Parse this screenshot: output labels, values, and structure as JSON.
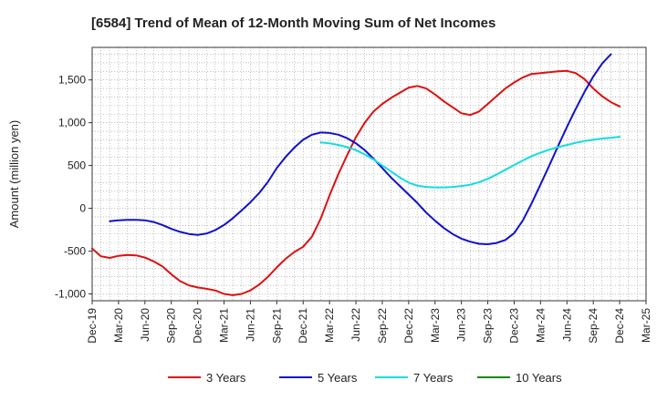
{
  "chart_data": {
    "type": "line",
    "title": "[6584]  Trend of Mean of 12-Month Moving Sum of Net Incomes",
    "xlabel": "",
    "ylabel": "Amount (million yen)",
    "x_start": "2019-12",
    "x_end": "2025-03",
    "ylim": [
      -1080,
      1880
    ],
    "yticks": [
      -1000,
      -500,
      0,
      500,
      1000,
      1500
    ],
    "ytick_labels": [
      "-1,000",
      "-500",
      "0",
      "500",
      "1,000",
      "1,500"
    ],
    "xtick_labels": [
      "Dec-19",
      "Mar-20",
      "Jun-20",
      "Sep-20",
      "Dec-20",
      "Mar-21",
      "Jun-21",
      "Sep-21",
      "Dec-21",
      "Mar-22",
      "Jun-22",
      "Sep-22",
      "Dec-22",
      "Mar-23",
      "Jun-23",
      "Sep-23",
      "Dec-23",
      "Mar-24",
      "Jun-24",
      "Sep-24",
      "Dec-24",
      "Mar-25"
    ],
    "grid": true,
    "legend_position": "bottom",
    "series": [
      {
        "name": "3 Years",
        "color": "#dd1111",
        "points": [
          [
            "2019-12",
            -470
          ],
          [
            "2020-01",
            -560
          ],
          [
            "2020-02",
            -580
          ],
          [
            "2020-03",
            -555
          ],
          [
            "2020-04",
            -545
          ],
          [
            "2020-05",
            -550
          ],
          [
            "2020-06",
            -575
          ],
          [
            "2020-07",
            -620
          ],
          [
            "2020-08",
            -680
          ],
          [
            "2020-09",
            -770
          ],
          [
            "2020-10",
            -850
          ],
          [
            "2020-11",
            -900
          ],
          [
            "2020-12",
            -925
          ],
          [
            "2021-01",
            -940
          ],
          [
            "2021-02",
            -960
          ],
          [
            "2021-03",
            -1000
          ],
          [
            "2021-04",
            -1015
          ],
          [
            "2021-05",
            -1000
          ],
          [
            "2021-06",
            -960
          ],
          [
            "2021-07",
            -890
          ],
          [
            "2021-08",
            -800
          ],
          [
            "2021-09",
            -690
          ],
          [
            "2021-10",
            -590
          ],
          [
            "2021-11",
            -510
          ],
          [
            "2021-12",
            -450
          ],
          [
            "2022-01",
            -330
          ],
          [
            "2022-02",
            -120
          ],
          [
            "2022-03",
            150
          ],
          [
            "2022-04",
            400
          ],
          [
            "2022-05",
            620
          ],
          [
            "2022-06",
            830
          ],
          [
            "2022-07",
            1000
          ],
          [
            "2022-08",
            1130
          ],
          [
            "2022-09",
            1220
          ],
          [
            "2022-10",
            1290
          ],
          [
            "2022-11",
            1350
          ],
          [
            "2022-12",
            1410
          ],
          [
            "2023-01",
            1430
          ],
          [
            "2023-02",
            1400
          ],
          [
            "2023-03",
            1330
          ],
          [
            "2023-04",
            1250
          ],
          [
            "2023-05",
            1180
          ],
          [
            "2023-06",
            1110
          ],
          [
            "2023-07",
            1090
          ],
          [
            "2023-08",
            1130
          ],
          [
            "2023-09",
            1220
          ],
          [
            "2023-10",
            1310
          ],
          [
            "2023-11",
            1400
          ],
          [
            "2023-12",
            1470
          ],
          [
            "2024-01",
            1530
          ],
          [
            "2024-02",
            1570
          ],
          [
            "2024-03",
            1580
          ],
          [
            "2024-04",
            1590
          ],
          [
            "2024-05",
            1600
          ],
          [
            "2024-06",
            1605
          ],
          [
            "2024-07",
            1580
          ],
          [
            "2024-08",
            1510
          ],
          [
            "2024-09",
            1400
          ],
          [
            "2024-10",
            1310
          ],
          [
            "2024-11",
            1240
          ],
          [
            "2024-12",
            1190
          ]
        ]
      },
      {
        "name": "5 Years",
        "color": "#1111cc",
        "points": [
          [
            "2020-02",
            -150
          ],
          [
            "2020-03",
            -140
          ],
          [
            "2020-04",
            -135
          ],
          [
            "2020-05",
            -135
          ],
          [
            "2020-06",
            -140
          ],
          [
            "2020-07",
            -160
          ],
          [
            "2020-08",
            -195
          ],
          [
            "2020-09",
            -240
          ],
          [
            "2020-10",
            -275
          ],
          [
            "2020-11",
            -300
          ],
          [
            "2020-12",
            -310
          ],
          [
            "2021-01",
            -295
          ],
          [
            "2021-02",
            -255
          ],
          [
            "2021-03",
            -195
          ],
          [
            "2021-04",
            -115
          ],
          [
            "2021-05",
            -25
          ],
          [
            "2021-06",
            70
          ],
          [
            "2021-07",
            180
          ],
          [
            "2021-08",
            310
          ],
          [
            "2021-09",
            470
          ],
          [
            "2021-10",
            600
          ],
          [
            "2021-11",
            710
          ],
          [
            "2021-12",
            800
          ],
          [
            "2022-01",
            860
          ],
          [
            "2022-02",
            885
          ],
          [
            "2022-03",
            880
          ],
          [
            "2022-04",
            860
          ],
          [
            "2022-05",
            820
          ],
          [
            "2022-06",
            760
          ],
          [
            "2022-07",
            680
          ],
          [
            "2022-08",
            580
          ],
          [
            "2022-09",
            470
          ],
          [
            "2022-10",
            360
          ],
          [
            "2022-11",
            260
          ],
          [
            "2022-12",
            160
          ],
          [
            "2023-01",
            60
          ],
          [
            "2023-02",
            -50
          ],
          [
            "2023-03",
            -145
          ],
          [
            "2023-04",
            -230
          ],
          [
            "2023-05",
            -300
          ],
          [
            "2023-06",
            -355
          ],
          [
            "2023-07",
            -390
          ],
          [
            "2023-08",
            -415
          ],
          [
            "2023-09",
            -420
          ],
          [
            "2023-10",
            -405
          ],
          [
            "2023-11",
            -370
          ],
          [
            "2023-12",
            -290
          ],
          [
            "2024-01",
            -140
          ],
          [
            "2024-02",
            60
          ],
          [
            "2024-03",
            280
          ],
          [
            "2024-04",
            500
          ],
          [
            "2024-05",
            730
          ],
          [
            "2024-06",
            950
          ],
          [
            "2024-07",
            1160
          ],
          [
            "2024-08",
            1360
          ],
          [
            "2024-09",
            1540
          ],
          [
            "2024-10",
            1690
          ],
          [
            "2024-11",
            1800
          ]
        ]
      },
      {
        "name": "7 Years",
        "color": "#11dddd",
        "points": [
          [
            "2022-02",
            770
          ],
          [
            "2022-03",
            760
          ],
          [
            "2022-04",
            740
          ],
          [
            "2022-05",
            715
          ],
          [
            "2022-06",
            680
          ],
          [
            "2022-07",
            630
          ],
          [
            "2022-08",
            570
          ],
          [
            "2022-09",
            500
          ],
          [
            "2022-10",
            430
          ],
          [
            "2022-11",
            360
          ],
          [
            "2022-12",
            300
          ],
          [
            "2023-01",
            265
          ],
          [
            "2023-02",
            250
          ],
          [
            "2023-03",
            245
          ],
          [
            "2023-04",
            245
          ],
          [
            "2023-05",
            250
          ],
          [
            "2023-06",
            260
          ],
          [
            "2023-07",
            275
          ],
          [
            "2023-08",
            305
          ],
          [
            "2023-09",
            345
          ],
          [
            "2023-10",
            395
          ],
          [
            "2023-11",
            450
          ],
          [
            "2023-12",
            505
          ],
          [
            "2024-01",
            560
          ],
          [
            "2024-02",
            610
          ],
          [
            "2024-03",
            650
          ],
          [
            "2024-04",
            685
          ],
          [
            "2024-05",
            715
          ],
          [
            "2024-06",
            740
          ],
          [
            "2024-07",
            765
          ],
          [
            "2024-08",
            785
          ],
          [
            "2024-09",
            800
          ],
          [
            "2024-10",
            815
          ],
          [
            "2024-11",
            825
          ],
          [
            "2024-12",
            835
          ]
        ]
      },
      {
        "name": "10 Years",
        "color": "#118811",
        "points": []
      }
    ]
  }
}
